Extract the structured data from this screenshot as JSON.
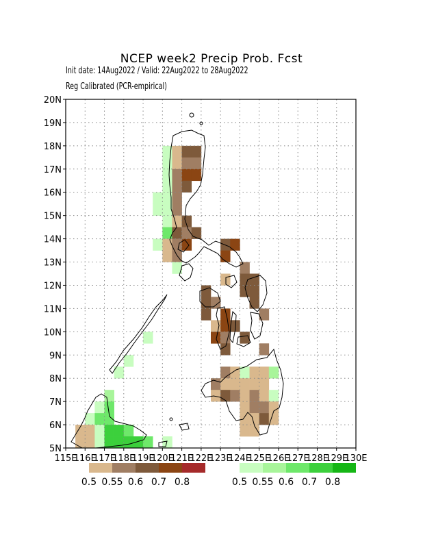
{
  "title": "NCEP week2 Precip Prob. Fcst",
  "subtitle1": "Init date: 14Aug2022 / Valid: 22Aug2022 to 28Aug2022",
  "subtitle2": "Reg Calibrated (PCR-empirical)",
  "chart_data": {
    "type": "heatmap",
    "xlim": [
      115,
      130
    ],
    "ylim": [
      5,
      20
    ],
    "grid": true,
    "lat_ticks": [
      "5N",
      "6N",
      "7N",
      "8N",
      "9N",
      "10N",
      "11N",
      "12N",
      "13N",
      "14N",
      "15N",
      "16N",
      "17N",
      "18N",
      "19N",
      "20N"
    ],
    "lon_ticks": [
      "115E",
      "116E",
      "117E",
      "118E",
      "119E",
      "120E",
      "121E",
      "122E",
      "123E",
      "124E",
      "125E",
      "126E",
      "127E",
      "128E",
      "129E",
      "130E"
    ],
    "dry_legend": {
      "labels": [
        "0.5",
        "0.55",
        "0.6",
        "0.7",
        "0.8"
      ],
      "colors": [
        "#d9b88d",
        "#a07e63",
        "#7e5a3b",
        "#8b4513",
        "#a52a2a"
      ]
    },
    "wet_legend": {
      "labels": [
        "0.5",
        "0.55",
        "0.6",
        "0.7",
        "0.8"
      ],
      "colors": [
        "#c8fdc0",
        "#a8f59a",
        "#6ee86a",
        "#3cd03c",
        "#15b615"
      ]
    },
    "cells": [
      {
        "lon": 120.25,
        "lat": 17.75,
        "v": "w1"
      },
      {
        "lon": 120.75,
        "lat": 17.75,
        "v": "d1"
      },
      {
        "lon": 121.25,
        "lat": 17.75,
        "v": "d3"
      },
      {
        "lon": 121.75,
        "lat": 17.75,
        "v": "d3"
      },
      {
        "lon": 120.25,
        "lat": 17.25,
        "v": "w1"
      },
      {
        "lon": 120.75,
        "lat": 17.25,
        "v": "d1"
      },
      {
        "lon": 121.25,
        "lat": 17.25,
        "v": "d2"
      },
      {
        "lon": 121.75,
        "lat": 17.25,
        "v": "d2"
      },
      {
        "lon": 120.25,
        "lat": 16.75,
        "v": "w1"
      },
      {
        "lon": 120.75,
        "lat": 16.75,
        "v": "d2"
      },
      {
        "lon": 121.25,
        "lat": 16.75,
        "v": "d4"
      },
      {
        "lon": 121.75,
        "lat": 16.75,
        "v": "d4"
      },
      {
        "lon": 120.25,
        "lat": 16.25,
        "v": "w1"
      },
      {
        "lon": 120.75,
        "lat": 16.25,
        "v": "d2"
      },
      {
        "lon": 121.25,
        "lat": 16.25,
        "v": "d3"
      },
      {
        "lon": 119.75,
        "lat": 15.75,
        "v": "w1"
      },
      {
        "lon": 120.25,
        "lat": 15.75,
        "v": "w1"
      },
      {
        "lon": 120.75,
        "lat": 15.75,
        "v": "d2"
      },
      {
        "lon": 119.75,
        "lat": 15.25,
        "v": "w1"
      },
      {
        "lon": 120.25,
        "lat": 15.25,
        "v": "w1"
      },
      {
        "lon": 120.75,
        "lat": 15.25,
        "v": "d2"
      },
      {
        "lon": 120.25,
        "lat": 14.75,
        "v": "w1"
      },
      {
        "lon": 120.75,
        "lat": 14.75,
        "v": "d1"
      },
      {
        "lon": 121.25,
        "lat": 14.75,
        "v": "d3"
      },
      {
        "lon": 120.25,
        "lat": 14.25,
        "v": "w3"
      },
      {
        "lon": 120.75,
        "lat": 14.25,
        "v": "d3"
      },
      {
        "lon": 121.25,
        "lat": 14.25,
        "v": "d2"
      },
      {
        "lon": 121.75,
        "lat": 14.25,
        "v": "d3"
      },
      {
        "lon": 119.75,
        "lat": 13.75,
        "v": "w1"
      },
      {
        "lon": 120.25,
        "lat": 13.75,
        "v": "d1"
      },
      {
        "lon": 120.75,
        "lat": 13.75,
        "v": "d2"
      },
      {
        "lon": 121.25,
        "lat": 13.75,
        "v": "d4"
      },
      {
        "lon": 123.25,
        "lat": 13.75,
        "v": "d3"
      },
      {
        "lon": 123.75,
        "lat": 13.75,
        "v": "d4"
      },
      {
        "lon": 120.25,
        "lat": 13.25,
        "v": "d1"
      },
      {
        "lon": 120.75,
        "lat": 13.25,
        "v": "d2"
      },
      {
        "lon": 123.25,
        "lat": 13.25,
        "v": "d4"
      },
      {
        "lon": 120.75,
        "lat": 12.75,
        "v": "w1"
      },
      {
        "lon": 124.25,
        "lat": 12.75,
        "v": "d2"
      },
      {
        "lon": 123.25,
        "lat": 12.25,
        "v": "d1"
      },
      {
        "lon": 124.25,
        "lat": 12.25,
        "v": "d3"
      },
      {
        "lon": 124.75,
        "lat": 12.25,
        "v": "d3"
      },
      {
        "lon": 122.25,
        "lat": 11.75,
        "v": "d3"
      },
      {
        "lon": 124.25,
        "lat": 11.75,
        "v": "d3"
      },
      {
        "lon": 124.75,
        "lat": 11.75,
        "v": "d3"
      },
      {
        "lon": 122.25,
        "lat": 11.25,
        "v": "d3"
      },
      {
        "lon": 122.75,
        "lat": 11.25,
        "v": "d2"
      },
      {
        "lon": 124.75,
        "lat": 11.25,
        "v": "d3"
      },
      {
        "lon": 122.25,
        "lat": 10.75,
        "v": "d3"
      },
      {
        "lon": 123.25,
        "lat": 10.75,
        "v": "d4"
      },
      {
        "lon": 125.25,
        "lat": 10.75,
        "v": "d2"
      },
      {
        "lon": 122.75,
        "lat": 10.25,
        "v": "d1"
      },
      {
        "lon": 123.25,
        "lat": 10.25,
        "v": "d4"
      },
      {
        "lon": 123.75,
        "lat": 10.25,
        "v": "d3"
      },
      {
        "lon": 122.75,
        "lat": 9.75,
        "v": "d4"
      },
      {
        "lon": 123.25,
        "lat": 9.75,
        "v": "d2"
      },
      {
        "lon": 124.25,
        "lat": 9.75,
        "v": "d3"
      },
      {
        "lon": 123.25,
        "lat": 9.25,
        "v": "d3"
      },
      {
        "lon": 125.25,
        "lat": 9.25,
        "v": "d2"
      },
      {
        "lon": 123.25,
        "lat": 8.25,
        "v": "d2"
      },
      {
        "lon": 123.75,
        "lat": 8.25,
        "v": "d1"
      },
      {
        "lon": 124.25,
        "lat": 8.25,
        "v": "w1"
      },
      {
        "lon": 124.75,
        "lat": 8.25,
        "v": "d1"
      },
      {
        "lon": 125.25,
        "lat": 8.25,
        "v": "d1"
      },
      {
        "lon": 125.75,
        "lat": 8.25,
        "v": "w2"
      },
      {
        "lon": 122.75,
        "lat": 7.75,
        "v": "d2"
      },
      {
        "lon": 123.25,
        "lat": 7.75,
        "v": "d1"
      },
      {
        "lon": 123.75,
        "lat": 7.75,
        "v": "d1"
      },
      {
        "lon": 124.25,
        "lat": 7.75,
        "v": "d1"
      },
      {
        "lon": 124.75,
        "lat": 7.75,
        "v": "d1"
      },
      {
        "lon": 125.25,
        "lat": 7.75,
        "v": "d1"
      },
      {
        "lon": 122.75,
        "lat": 7.25,
        "v": "d1"
      },
      {
        "lon": 123.25,
        "lat": 7.25,
        "v": "d3"
      },
      {
        "lon": 123.75,
        "lat": 7.25,
        "v": "d2"
      },
      {
        "lon": 124.25,
        "lat": 7.25,
        "v": "d1"
      },
      {
        "lon": 124.75,
        "lat": 7.25,
        "v": "d2"
      },
      {
        "lon": 125.25,
        "lat": 7.25,
        "v": "d1"
      },
      {
        "lon": 125.75,
        "lat": 7.25,
        "v": "w1"
      },
      {
        "lon": 124.25,
        "lat": 6.75,
        "v": "d1"
      },
      {
        "lon": 124.75,
        "lat": 6.75,
        "v": "d2"
      },
      {
        "lon": 125.25,
        "lat": 6.75,
        "v": "d2"
      },
      {
        "lon": 125.75,
        "lat": 6.75,
        "v": "d1"
      },
      {
        "lon": 124.25,
        "lat": 6.25,
        "v": "d1"
      },
      {
        "lon": 124.75,
        "lat": 6.25,
        "v": "d1"
      },
      {
        "lon": 125.25,
        "lat": 6.25,
        "v": "d3"
      },
      {
        "lon": 125.75,
        "lat": 6.25,
        "v": "d1"
      },
      {
        "lon": 124.25,
        "lat": 5.75,
        "v": "d1"
      },
      {
        "lon": 124.75,
        "lat": 5.75,
        "v": "d1"
      },
      {
        "lon": 119.25,
        "lat": 9.75,
        "v": "w1"
      },
      {
        "lon": 118.25,
        "lat": 8.75,
        "v": "w1"
      },
      {
        "lon": 117.75,
        "lat": 8.25,
        "v": "w1"
      },
      {
        "lon": 117.25,
        "lat": 7.25,
        "v": "w2"
      },
      {
        "lon": 116.75,
        "lat": 6.75,
        "v": "w1"
      },
      {
        "lon": 117.25,
        "lat": 6.75,
        "v": "w3"
      },
      {
        "lon": 116.25,
        "lat": 6.25,
        "v": "w1"
      },
      {
        "lon": 116.75,
        "lat": 6.25,
        "v": "w3"
      },
      {
        "lon": 117.25,
        "lat": 6.25,
        "v": "w3"
      },
      {
        "lon": 115.75,
        "lat": 5.75,
        "v": "d1"
      },
      {
        "lon": 116.25,
        "lat": 5.75,
        "v": "d1"
      },
      {
        "lon": 116.75,
        "lat": 5.75,
        "v": "w1"
      },
      {
        "lon": 117.25,
        "lat": 5.75,
        "v": "w4"
      },
      {
        "lon": 117.75,
        "lat": 5.75,
        "v": "w4"
      },
      {
        "lon": 118.25,
        "lat": 5.75,
        "v": "w3"
      },
      {
        "lon": 115.75,
        "lat": 5.25,
        "v": "d1"
      },
      {
        "lon": 116.25,
        "lat": 5.25,
        "v": "d1"
      },
      {
        "lon": 116.75,
        "lat": 5.25,
        "v": "w1"
      },
      {
        "lon": 117.25,
        "lat": 5.25,
        "v": "w4"
      },
      {
        "lon": 117.75,
        "lat": 5.25,
        "v": "w4"
      },
      {
        "lon": 118.25,
        "lat": 5.25,
        "v": "w4"
      },
      {
        "lon": 118.75,
        "lat": 5.25,
        "v": "w4"
      },
      {
        "lon": 119.25,
        "lat": 5.25,
        "v": "w3"
      },
      {
        "lon": 120.25,
        "lat": 5.25,
        "v": "w1"
      }
    ]
  }
}
